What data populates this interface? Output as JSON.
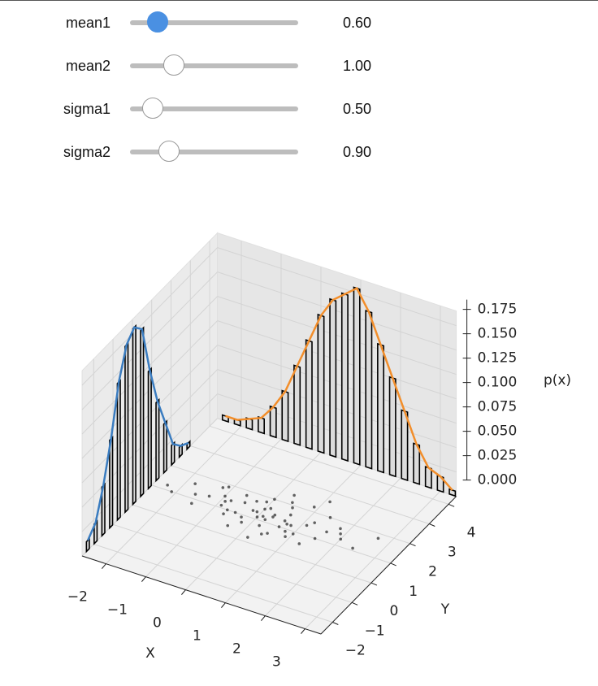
{
  "sliders": [
    {
      "label": "mean1",
      "value": "0.60"
    },
    {
      "label": "mean2",
      "value": "1.00"
    },
    {
      "label": "sigma1",
      "value": "0.50"
    },
    {
      "label": "sigma2",
      "value": "0.90"
    }
  ],
  "chart_data": {
    "type": "scatter3d",
    "xlabel": "X",
    "ylabel": "Y",
    "zlabel": "p(x)",
    "xlim": [
      -2.6,
      3.4
    ],
    "ylim": [
      -2.6,
      4.4
    ],
    "zlim": [
      0,
      0.19
    ],
    "xticks": [
      {
        "value": -2,
        "label": "−2"
      },
      {
        "value": -1,
        "label": "−1"
      },
      0,
      1,
      2,
      3
    ],
    "yticks": [
      {
        "value": -2,
        "label": "−2"
      },
      {
        "value": -1,
        "label": "−1"
      },
      0,
      1,
      2,
      3,
      4
    ],
    "zticks": [
      {
        "value": 0,
        "label": "0.000"
      },
      {
        "value": 0.025,
        "label": "0.025"
      },
      {
        "value": 0.05,
        "label": "0.050"
      },
      {
        "value": 0.075,
        "label": "0.075"
      },
      {
        "value": 0.1,
        "label": "0.100"
      },
      {
        "value": 0.125,
        "label": "0.125"
      },
      {
        "value": 0.15,
        "label": "0.150"
      },
      {
        "value": 0.175,
        "label": "0.175"
      }
    ],
    "grid": true,
    "points": {
      "color": "#000000",
      "x": [
        0.1,
        -0.5,
        0.8,
        -1.2,
        0.3,
        1.5,
        -0.2,
        0.6,
        -0.9,
        0.0,
        1.1,
        -1.6,
        0.4,
        -0.3,
        2.0,
        0.9,
        -0.7,
        0.2,
        -1.0,
        1.3,
        0.5,
        -0.1,
        -2.1,
        0.7,
        1.8,
        -0.4,
        0.3,
        -1.3,
        1.0,
        0.0,
        -0.6,
        2.4,
        0.2,
        -0.8,
        1.4,
        -1.8,
        0.6,
        -0.2,
        0.9,
        -1.1,
        0.1,
        1.6,
        -0.5,
        0.4,
        2.7,
        -0.3,
        0.8,
        -1.5,
        1.2,
        0.0,
        -0.9,
        0.5,
        1.9,
        -0.1,
        0.3,
        -2.3,
        1.1,
        -0.7,
        0.6,
        0.2
      ],
      "y": [
        1.2,
        1.5,
        0.9,
        1.8,
        1.3,
        1.0,
        0.7,
        1.6,
        1.1,
        2.0,
        1.4,
        1.2,
        0.5,
        1.7,
        1.3,
        2.2,
        0.8,
        1.1,
        1.5,
        0.6,
        1.9,
        1.3,
        1.0,
        1.2,
        1.7,
        0.4,
        2.4,
        1.3,
        0.9,
        1.5,
        1.8,
        1.1,
        0.2,
        1.4,
        2.0,
        1.6,
        1.0,
        1.3,
        0.7,
        1.9,
        1.6,
        1.4,
        1.0,
        2.1,
        1.8,
        0.9,
        1.2,
        0.8,
        1.6,
        1.1,
        1.3,
        0.6,
        1.5,
        1.8,
        1.4,
        1.2,
        2.6,
        1.0,
        1.3,
        0.8
      ]
    },
    "hist_y": {
      "color": "#3a7cc0",
      "x": [
        -2.3,
        -1.9,
        -1.5,
        -1.1,
        -0.7,
        -0.3,
        0.1,
        0.5,
        0.9,
        1.3,
        1.7,
        2.1,
        2.5,
        2.9
      ],
      "values": [
        0.01,
        0.02,
        0.05,
        0.09,
        0.14,
        0.17,
        0.18,
        0.17,
        0.12,
        0.08,
        0.05,
        0.02,
        0.01,
        0.005
      ]
    },
    "hist_x": {
      "color": "#f28e2b",
      "x": [
        -2.4,
        -2.1,
        -1.8,
        -1.5,
        -1.2,
        -0.9,
        -0.6,
        -0.3,
        0.0,
        0.3,
        0.6,
        0.9,
        1.2,
        1.5,
        1.8,
        2.1,
        2.4,
        2.7,
        3.0,
        3.3
      ],
      "values": [
        0.005,
        0.005,
        0.01,
        0.015,
        0.03,
        0.05,
        0.08,
        0.11,
        0.14,
        0.16,
        0.17,
        0.18,
        0.16,
        0.13,
        0.1,
        0.07,
        0.04,
        0.02,
        0.015,
        0.005
      ]
    }
  }
}
